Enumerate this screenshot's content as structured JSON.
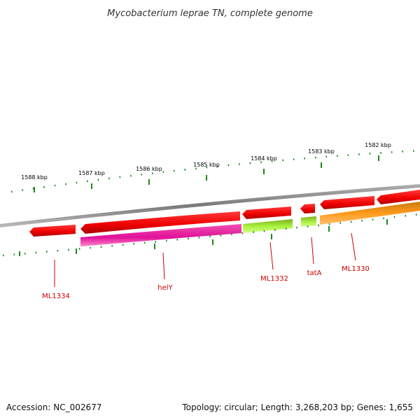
{
  "title": "Mycobacterium leprae TN, complete genome",
  "scale_labels": [
    "1588 kbp",
    "1587 kbp",
    "1586 kbp",
    "1585 kbp",
    "1584 kbp",
    "1583 kbp",
    "1582 kbp"
  ],
  "genes": [
    {
      "label": "ML1334",
      "color": "#ff0000"
    },
    {
      "label": "helY",
      "color": "#ff0000",
      "feature_color": "#e0119a"
    },
    {
      "label": "ML1332",
      "color": "#ff0000",
      "feature_color": "#a8f03c"
    },
    {
      "label": "tatA",
      "color": "#ff0000",
      "feature_color": "#a8f03c"
    },
    {
      "label": "ML1330",
      "color": "#ff0000",
      "feature_color": "#ff9a1a"
    }
  ],
  "colors": {
    "backbone": "#8a8a8a",
    "tick": "#1a8a1a",
    "label": "#cc0000"
  },
  "footer": {
    "accession": "Accession: NC_002677",
    "info": "Topology: circular; Length: 3,268,203 bp; Genes: 1,655"
  }
}
